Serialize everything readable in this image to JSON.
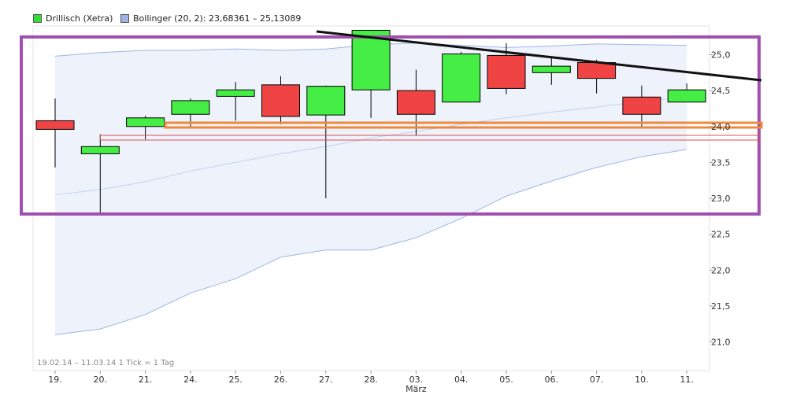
{
  "legend": [
    {
      "label": "Drillisch (Xetra)",
      "color": "#33dd33"
    },
    {
      "label": "Bollinger (20, 2): 23,68361 – 25,13089",
      "color": "#9fb3e6"
    }
  ],
  "range_text": "19.02.14 – 11.03.14   1 Tick = 1 Tag",
  "colors": {
    "up": "#44ee44",
    "down": "#f04444",
    "band_fill": "#edf2fb",
    "band_line": "#9fb6e4",
    "highlight_box": "#a050b0",
    "support_line": "#f08a3a",
    "trend_line": "#111111"
  },
  "chart_data": {
    "type": "candlestick",
    "categories": [
      "19.",
      "20.",
      "21.",
      "24.",
      "25.",
      "26.",
      "27.",
      "28.",
      "03.",
      "04.",
      "05.",
      "06.",
      "07.",
      "10.",
      "11."
    ],
    "month_label": "März",
    "ylim": [
      20.6,
      25.4
    ],
    "yticks": [
      "21,0",
      "21,5",
      "22,0",
      "22,5",
      "23,0",
      "23,5",
      "24,0",
      "24,5",
      "25,0"
    ],
    "ytick_values": [
      21.0,
      21.5,
      22.0,
      22.5,
      23.0,
      23.5,
      24.0,
      24.5,
      25.0
    ],
    "ohlc": [
      {
        "o": 24.08,
        "h": 24.39,
        "l": 23.43,
        "c": 23.96
      },
      {
        "o": 23.62,
        "h": 23.89,
        "l": 22.8,
        "c": 23.72
      },
      {
        "o": 24.0,
        "h": 24.15,
        "l": 23.82,
        "c": 24.12
      },
      {
        "o": 24.17,
        "h": 24.39,
        "l": 23.97,
        "c": 24.36
      },
      {
        "o": 24.42,
        "h": 24.62,
        "l": 24.08,
        "c": 24.51
      },
      {
        "o": 24.58,
        "h": 24.7,
        "l": 24.03,
        "c": 24.14
      },
      {
        "o": 24.16,
        "h": 24.57,
        "l": 23.0,
        "c": 24.56
      },
      {
        "o": 24.51,
        "h": 25.34,
        "l": 24.12,
        "c": 25.34
      },
      {
        "o": 24.5,
        "h": 24.79,
        "l": 23.88,
        "c": 24.17
      },
      {
        "o": 24.34,
        "h": 25.04,
        "l": 24.34,
        "c": 25.01
      },
      {
        "o": 24.99,
        "h": 25.16,
        "l": 24.45,
        "c": 24.53
      },
      {
        "o": 24.75,
        "h": 24.98,
        "l": 24.58,
        "c": 24.84
      },
      {
        "o": 24.89,
        "h": 24.93,
        "l": 24.46,
        "c": 24.67
      },
      {
        "o": 24.41,
        "h": 24.57,
        "l": 23.99,
        "c": 24.17
      },
      {
        "o": 24.34,
        "h": 24.6,
        "l": 24.34,
        "c": 24.51
      }
    ],
    "bollinger_upper": [
      24.98,
      25.03,
      25.06,
      25.06,
      25.08,
      25.06,
      25.08,
      25.14,
      25.16,
      25.13,
      25.1,
      25.12,
      25.15,
      25.14,
      25.13
    ],
    "bollinger_middle": [
      23.05,
      23.12,
      23.23,
      23.38,
      23.5,
      23.62,
      23.72,
      23.84,
      23.93,
      24.03,
      24.12,
      24.2,
      24.27,
      24.35,
      24.41
    ],
    "bollinger_lower": [
      21.1,
      21.18,
      21.38,
      21.68,
      21.88,
      22.18,
      22.28,
      22.28,
      22.45,
      22.72,
      23.03,
      23.24,
      23.43,
      23.58,
      23.68
    ]
  }
}
